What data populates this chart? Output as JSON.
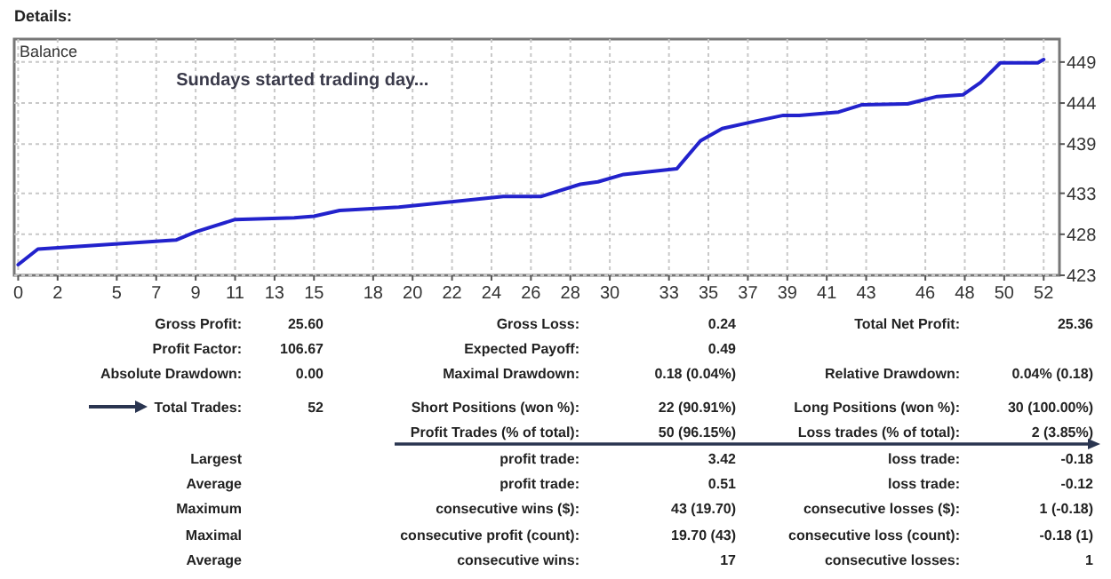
{
  "chart_data": {
    "type": "line",
    "title": "Details:",
    "ylabel": "Balance",
    "x": [
      0,
      1,
      8,
      9,
      11,
      14,
      15,
      16.3,
      19.3,
      24.6,
      26.5,
      28.5,
      29.4,
      30.7,
      33.4,
      34.6,
      35.7,
      37.4,
      38.8,
      39.6,
      41.6,
      42.8,
      45.1,
      46.6,
      47.9,
      48.8,
      49.8,
      51.7,
      52
    ],
    "series": [
      {
        "color": "#2222cc",
        "values": [
          424.3,
          426.2,
          427.3,
          428.3,
          429.8,
          430.0,
          430.2,
          430.9,
          431.3,
          432.6,
          432.6,
          434.1,
          434.4,
          435.3,
          436.0,
          439.4,
          440.9,
          441.8,
          442.5,
          442.5,
          442.9,
          443.8,
          443.9,
          444.8,
          445.0,
          446.5,
          448.9,
          448.9,
          449.3
        ]
      }
    ],
    "xlim": [
      -0.2,
      52.8
    ],
    "ylim": [
      423,
      451.8
    ],
    "xticks": [
      0,
      2,
      5,
      7,
      9,
      11,
      13,
      15,
      18,
      20,
      22,
      24,
      26,
      28,
      30,
      33,
      35,
      37,
      39,
      41,
      43,
      46,
      48,
      50,
      52
    ],
    "yticks": [
      423,
      428,
      433,
      439,
      444,
      449
    ],
    "grid": true,
    "marker": "none",
    "line_style": "solid",
    "annotations": [
      "Sundays started trading day...",
      "Gross Profit:",
      "25.60",
      "Gross Loss:",
      "0.24",
      "Total Net Profit:",
      "25.36",
      "Profit Factor:",
      "106.67",
      "Expected Payoff:",
      "0.49",
      "Absolute Drawdown:",
      "0.00",
      "Maximal Drawdown:",
      "0.18 (0.04%)",
      "Relative Drawdown:",
      "0.04% (0.18)",
      "Total Trades:",
      "52",
      "Short Positions (won %):",
      "22 (90.91%)",
      "Long Positions (won %):",
      "30 (100.00%)",
      "Profit Trades (% of total):",
      "50 (96.15%)",
      "Loss trades (% of total):",
      "2 (3.85%)",
      "Largest",
      "profit trade:",
      "3.42",
      "loss trade:",
      "-0.18",
      "Average",
      "profit trade:",
      "0.51",
      "loss trade:",
      "-0.12",
      "Maximum",
      "consecutive wins ($):",
      "43 (19.70)",
      "consecutive losses ($):",
      "1 (-0.18)",
      "Maximal",
      "consecutive profit (count):",
      "19.70 (43)",
      "consecutive loss (count):",
      "-0.18 (1)",
      "Average",
      "consecutive wins:",
      "17",
      "consecutive losses:",
      "1"
    ]
  }
}
